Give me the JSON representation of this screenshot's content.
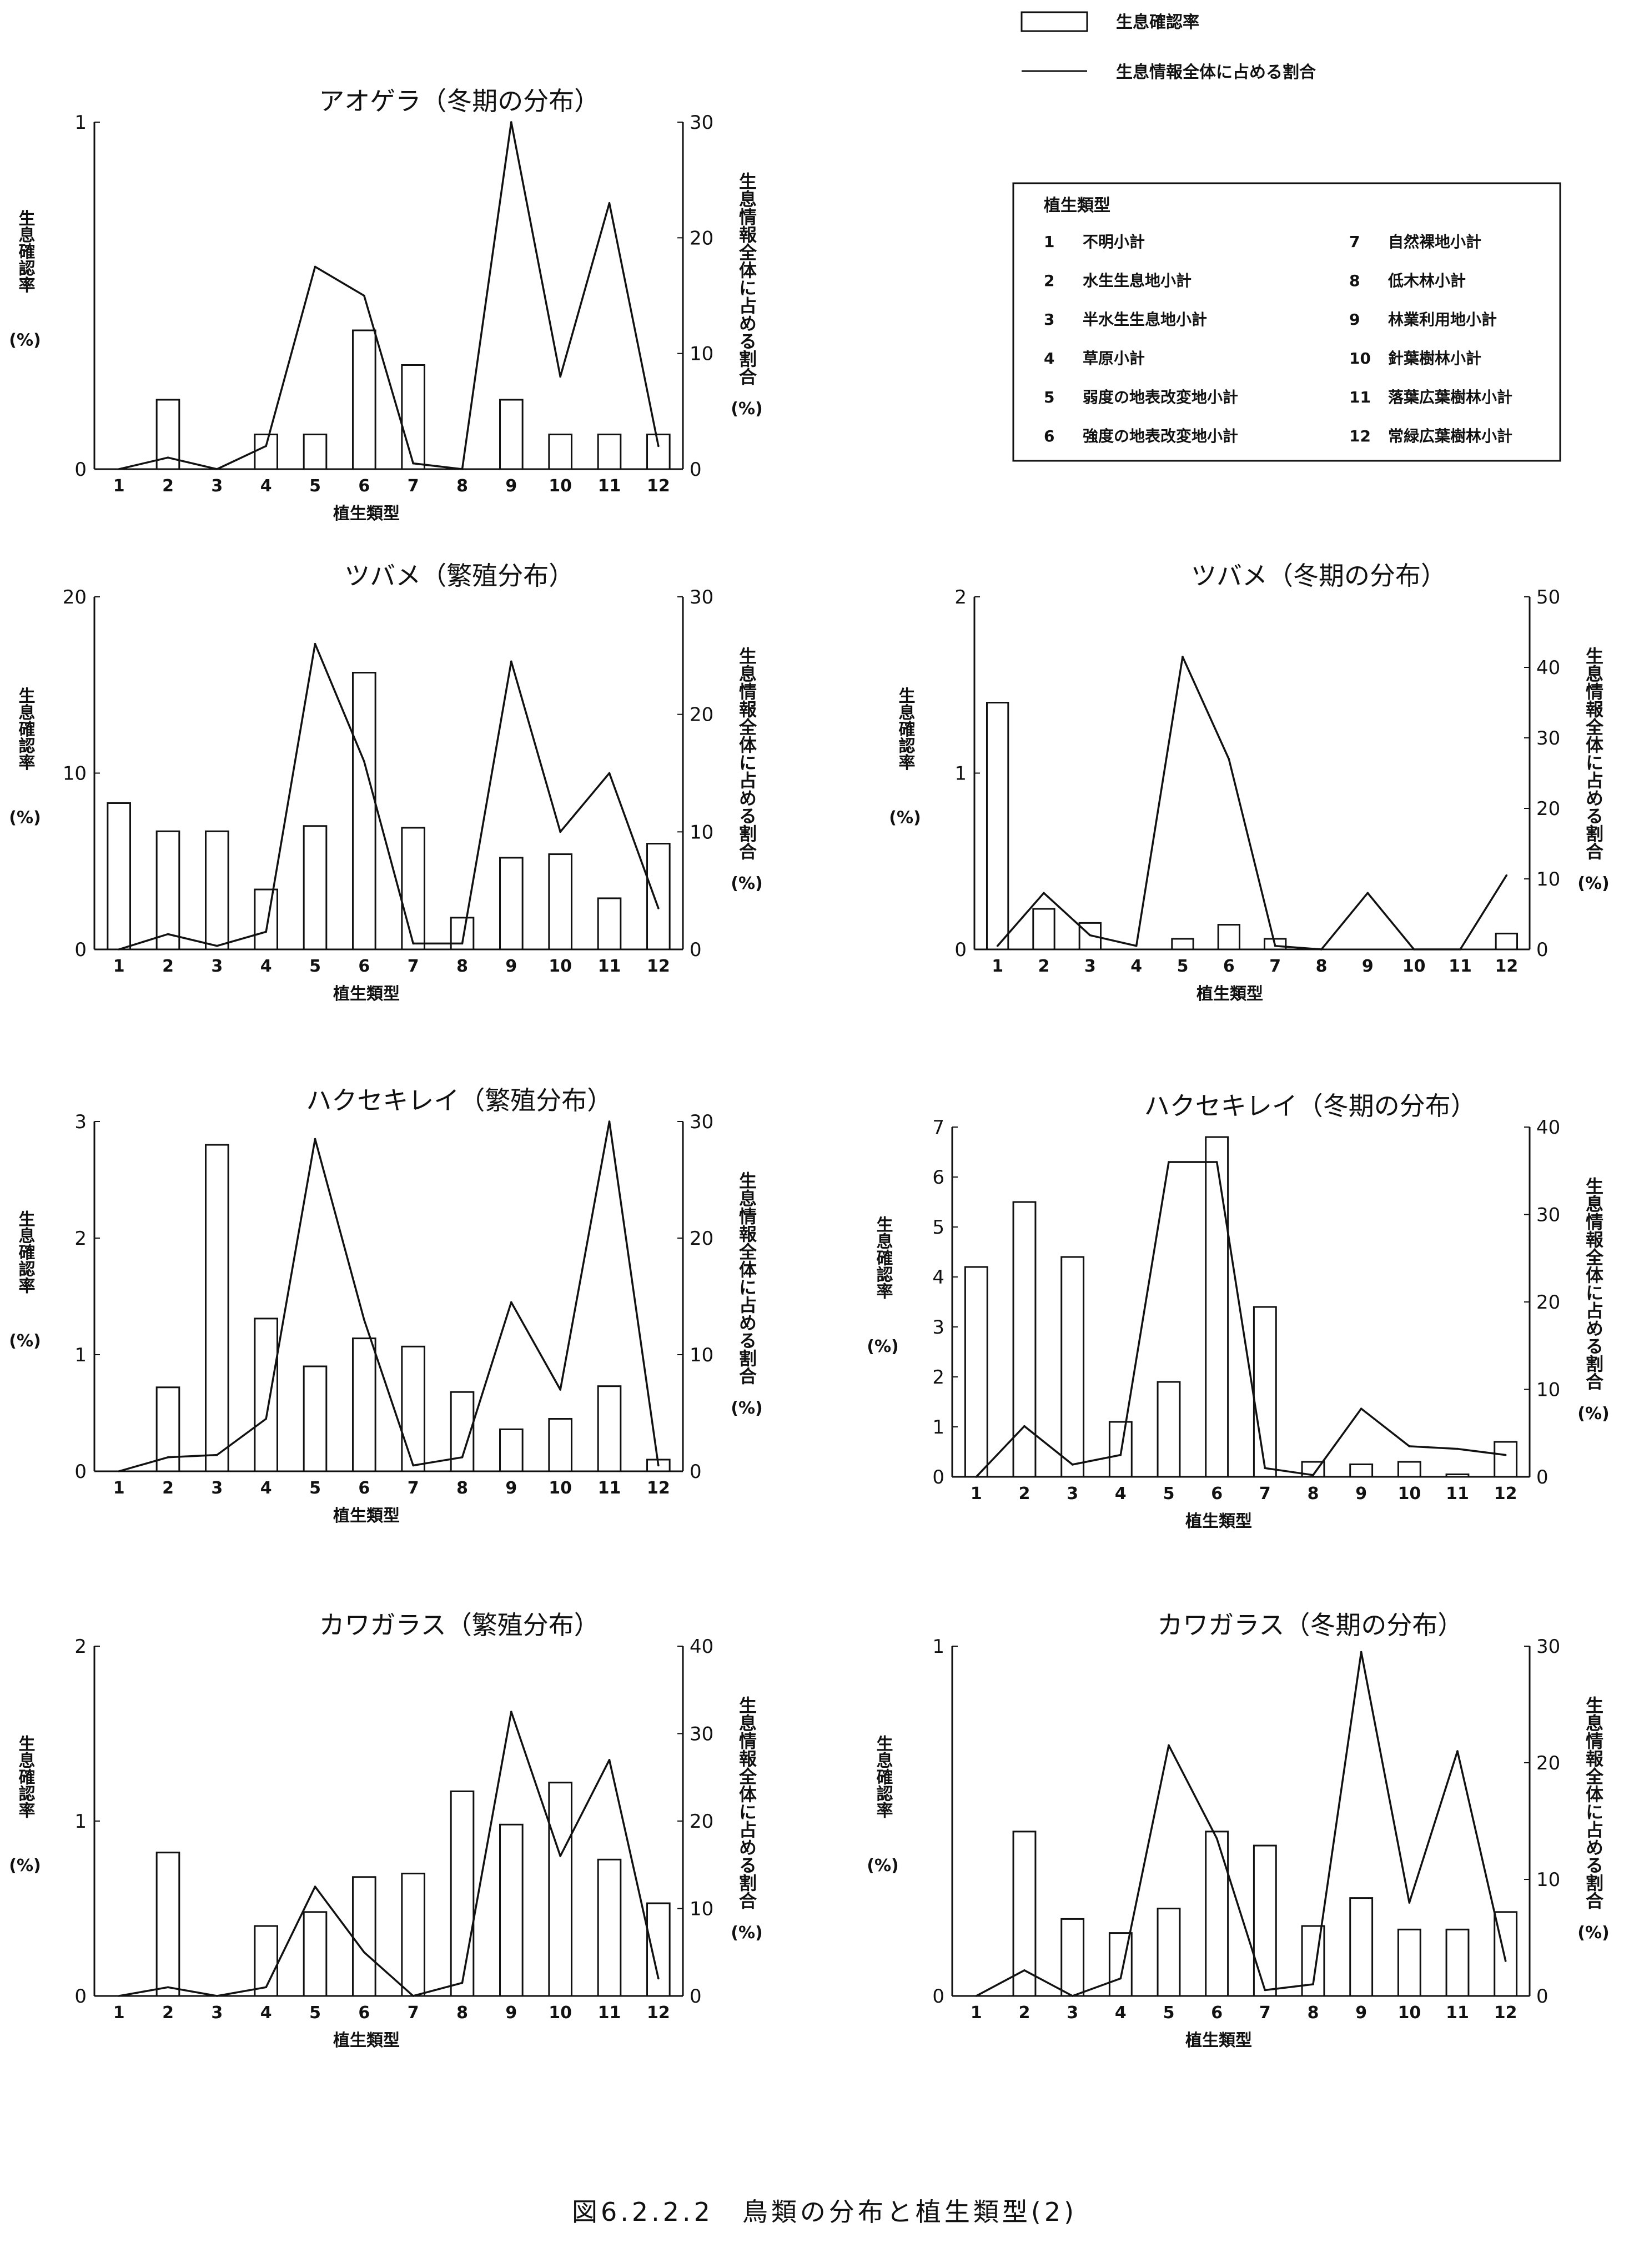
{
  "legend": {
    "bar_label": "生息確認率",
    "line_label": "生息情報全体に占める割合"
  },
  "vegetation_box": {
    "title": "植生類型",
    "items": [
      {
        "num": "1",
        "label": "不明小計"
      },
      {
        "num": "2",
        "label": "水生生息地小計"
      },
      {
        "num": "3",
        "label": "半水生生息地小計"
      },
      {
        "num": "4",
        "label": "草原小計"
      },
      {
        "num": "5",
        "label": "弱度の地表改変地小計"
      },
      {
        "num": "6",
        "label": "強度の地表改変地小計"
      },
      {
        "num": "7",
        "label": "自然裸地小計"
      },
      {
        "num": "8",
        "label": "低木林小計"
      },
      {
        "num": "9",
        "label": "林業利用地小計"
      },
      {
        "num": "10",
        "label": "針葉樹林小計"
      },
      {
        "num": "11",
        "label": "落葉広葉樹林小計"
      },
      {
        "num": "12",
        "label": "常緑広葉樹林小計"
      }
    ]
  },
  "caption": "図6.2.2.2　鳥類の分布と植生類型(2)",
  "colors": {
    "ink": "#111111",
    "paper": "#ffffff"
  },
  "chart_data": [
    {
      "type": "bar+line",
      "title": "アオゲラ（冬期の分布）",
      "xlabel": "植生類型",
      "ylabel_left": "生息確認率\n(%)",
      "ylabel_right": "生息情報全体に占める割合\n(%)",
      "categories": [
        "1",
        "2",
        "3",
        "4",
        "5",
        "6",
        "7",
        "8",
        "9",
        "10",
        "11",
        "12"
      ],
      "bar_values": [
        0,
        0.2,
        0,
        0.1,
        0.1,
        0.4,
        0.3,
        0,
        0.2,
        0.1,
        0.1,
        0.1
      ],
      "line_values": [
        0,
        1,
        0,
        2,
        17.5,
        15,
        0.5,
        0,
        30,
        8,
        23,
        2
      ],
      "ylim_left": [
        0,
        1
      ],
      "yticks_left": [
        0,
        1
      ],
      "ylim_right": [
        0,
        30
      ],
      "yticks_right": [
        0,
        10,
        20,
        30
      ]
    },
    {
      "type": "bar+line",
      "title": "ツバメ（繁殖分布）",
      "xlabel": "植生類型",
      "ylabel_left": "生息確認率\n(%)",
      "ylabel_right": "生息情報全体に占める割合\n(%)",
      "categories": [
        "1",
        "2",
        "3",
        "4",
        "5",
        "6",
        "7",
        "8",
        "9",
        "10",
        "11",
        "12"
      ],
      "bar_values": [
        8.3,
        6.7,
        6.7,
        3.4,
        7,
        15.7,
        6.9,
        1.8,
        5.2,
        5.4,
        2.9,
        6
      ],
      "line_values": [
        0,
        1.3,
        0.3,
        1.5,
        26,
        16,
        0.5,
        0.5,
        24.5,
        10,
        15,
        3.5
      ],
      "ylim_left": [
        0,
        20
      ],
      "yticks_left": [
        0,
        10,
        20
      ],
      "ylim_right": [
        0,
        30
      ],
      "yticks_right": [
        0,
        10,
        20,
        30
      ]
    },
    {
      "type": "bar+line",
      "title": "ツバメ（冬期の分布）",
      "xlabel": "植生類型",
      "ylabel_left": "生息確認率\n(%)",
      "ylabel_right": "生息情報全体に占める割合\n(%)",
      "categories": [
        "1",
        "2",
        "3",
        "4",
        "5",
        "6",
        "7",
        "8",
        "9",
        "10",
        "11",
        "12"
      ],
      "bar_values": [
        1.4,
        0.23,
        0.15,
        0,
        0.06,
        0.14,
        0.06,
        0,
        0,
        0,
        0,
        0.09
      ],
      "line_values": [
        0.5,
        8,
        2,
        0.5,
        41.5,
        27,
        0.5,
        0,
        8,
        0,
        0,
        10.5
      ],
      "ylim_left": [
        0,
        2
      ],
      "yticks_left": [
        0,
        1,
        2
      ],
      "ylim_right": [
        0,
        50
      ],
      "yticks_right": [
        0,
        10,
        20,
        30,
        40,
        50
      ]
    },
    {
      "type": "bar+line",
      "title": "ハクセキレイ（繁殖分布）",
      "xlabel": "植生類型",
      "ylabel_left": "生息確認率\n(%)",
      "ylabel_right": "生息情報全体に占める割合\n(%)",
      "categories": [
        "1",
        "2",
        "3",
        "4",
        "5",
        "6",
        "7",
        "8",
        "9",
        "10",
        "11",
        "12"
      ],
      "bar_values": [
        0,
        0.72,
        2.8,
        1.31,
        0.9,
        1.14,
        1.07,
        0.68,
        0.36,
        0.45,
        0.73,
        0.1
      ],
      "line_values": [
        0,
        1.2,
        1.4,
        4.5,
        28.5,
        13,
        0.5,
        1.2,
        14.5,
        7,
        30,
        0.5
      ],
      "ylim_left": [
        0,
        3
      ],
      "yticks_left": [
        0,
        1,
        2,
        3
      ],
      "ylim_right": [
        0,
        30
      ],
      "yticks_right": [
        0,
        10,
        20,
        30
      ]
    },
    {
      "type": "bar+line",
      "title": "ハクセキレイ（冬期の分布）",
      "xlabel": "植生類型",
      "ylabel_left": "生息確認率\n(%)",
      "ylabel_right": "生息情報全体に占める割合\n(%)",
      "categories": [
        "1",
        "2",
        "3",
        "4",
        "5",
        "6",
        "7",
        "8",
        "9",
        "10",
        "11",
        "12"
      ],
      "bar_values": [
        4.2,
        5.5,
        4.4,
        1.1,
        1.9,
        6.8,
        3.4,
        0.3,
        0.25,
        0.3,
        0.05,
        0.7
      ],
      "line_values": [
        0,
        5.8,
        1.4,
        2.5,
        36,
        36,
        1,
        0.2,
        7.8,
        3.5,
        3.2,
        2.5
      ],
      "ylim_left": [
        0,
        7
      ],
      "yticks_left": [
        0,
        1,
        2,
        3,
        4,
        5,
        6,
        7
      ],
      "ylim_right": [
        0,
        40
      ],
      "yticks_right": [
        0,
        10,
        20,
        30,
        40
      ]
    },
    {
      "type": "bar+line",
      "title": "カワガラス（繁殖分布）",
      "xlabel": "植生類型",
      "ylabel_left": "生息確認率\n(%)",
      "ylabel_right": "生息情報全体に占める割合\n(%)",
      "categories": [
        "1",
        "2",
        "3",
        "4",
        "5",
        "6",
        "7",
        "8",
        "9",
        "10",
        "11",
        "12"
      ],
      "bar_values": [
        0,
        0.82,
        0,
        0.4,
        0.48,
        0.68,
        0.7,
        1.17,
        0.98,
        1.22,
        0.78,
        0.53
      ],
      "line_values": [
        0,
        1,
        0,
        1,
        12.5,
        5,
        0,
        1.5,
        32.5,
        16,
        27,
        2
      ],
      "ylim_left": [
        0,
        2
      ],
      "yticks_left": [
        0,
        1,
        2
      ],
      "ylim_right": [
        0,
        40
      ],
      "yticks_right": [
        0,
        10,
        20,
        30,
        40
      ]
    },
    {
      "type": "bar+line",
      "title": "カワガラス（冬期の分布）",
      "xlabel": "植生類型",
      "ylabel_left": "生息確認率\n(%)",
      "ylabel_right": "生息情報全体に占める割合\n(%)",
      "categories": [
        "1",
        "2",
        "3",
        "4",
        "5",
        "6",
        "7",
        "8",
        "9",
        "10",
        "11",
        "12"
      ],
      "bar_values": [
        0,
        0.47,
        0.22,
        0.18,
        0.25,
        0.47,
        0.43,
        0.2,
        0.28,
        0.19,
        0.19,
        0.24
      ],
      "line_values": [
        0,
        2.2,
        0,
        1.5,
        21.5,
        13.5,
        0.5,
        1,
        29.5,
        8,
        21,
        3
      ],
      "ylim_left": [
        0,
        1
      ],
      "yticks_left": [
        0,
        1
      ],
      "ylim_right": [
        0,
        30
      ],
      "yticks_right": [
        0,
        10,
        20,
        30
      ]
    }
  ]
}
